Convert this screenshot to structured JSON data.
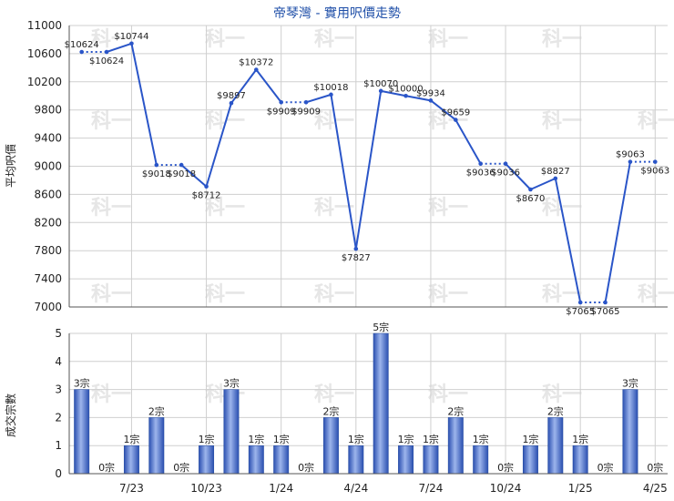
{
  "chart_data": [
    {
      "type": "line",
      "title": "帝琴灣 - 實用呎價走勢",
      "ylabel": "平均呎價",
      "ylim": [
        7000,
        11000
      ],
      "yticks": [
        7000,
        7400,
        7800,
        8200,
        8600,
        9000,
        9400,
        9800,
        10200,
        10600,
        11000
      ],
      "grid": true,
      "series": [
        {
          "values": [
            10624,
            10624,
            10744,
            9018,
            9018,
            8712,
            9897,
            10372,
            9909,
            9909,
            10018,
            7827,
            10070,
            10000,
            9934,
            9659,
            9036,
            9036,
            8670,
            8827,
            7065,
            7065,
            9063,
            9063
          ],
          "labels": [
            "$10624",
            "$10624",
            "$10744",
            "$9018",
            "$9018",
            "$8712",
            "$9897",
            "$10372",
            "$9909",
            "$9909",
            "$10018",
            "$7827",
            "$10070",
            "$10000",
            "$9934",
            "$9659",
            "$9036",
            "$9036",
            "$8670",
            "$8827",
            "$7065",
            "$7065",
            "$9063",
            "$9063"
          ],
          "interpolated": [
            false,
            true,
            false,
            false,
            true,
            false,
            false,
            false,
            false,
            true,
            false,
            false,
            false,
            false,
            false,
            false,
            false,
            true,
            false,
            false,
            false,
            true,
            false,
            true
          ]
        }
      ]
    },
    {
      "type": "bar",
      "ylabel": "成交宗數",
      "ylim": [
        0,
        5
      ],
      "yticks": [
        0,
        1,
        2,
        3,
        4,
        5
      ],
      "grid": true,
      "values": [
        3,
        0,
        1,
        2,
        0,
        1,
        3,
        1,
        1,
        0,
        2,
        1,
        5,
        1,
        1,
        2,
        1,
        0,
        1,
        2,
        1,
        0,
        3,
        0
      ],
      "labels": [
        "3宗",
        "0宗",
        "1宗",
        "2宗",
        "0宗",
        "1宗",
        "3宗",
        "1宗",
        "1宗",
        "0宗",
        "2宗",
        "1宗",
        "5宗",
        "1宗",
        "1宗",
        "2宗",
        "1宗",
        "0宗",
        "1宗",
        "2宗",
        "1宗",
        "0宗",
        "3宗",
        "0宗"
      ],
      "x_tick_labels": [
        "7/23",
        "10/23",
        "1/24",
        "4/24",
        "7/24",
        "10/24",
        "1/25",
        "4/25"
      ],
      "x_tick_index": [
        2,
        5,
        8,
        11,
        14,
        17,
        20,
        23
      ]
    }
  ],
  "watermark": "科一",
  "colors": {
    "line": "#2a55c8",
    "bar_dark": "#2a4fb0",
    "bar_light": "#9db5ec",
    "title": "#1f4fa8",
    "grid": "#cfcfcf"
  }
}
